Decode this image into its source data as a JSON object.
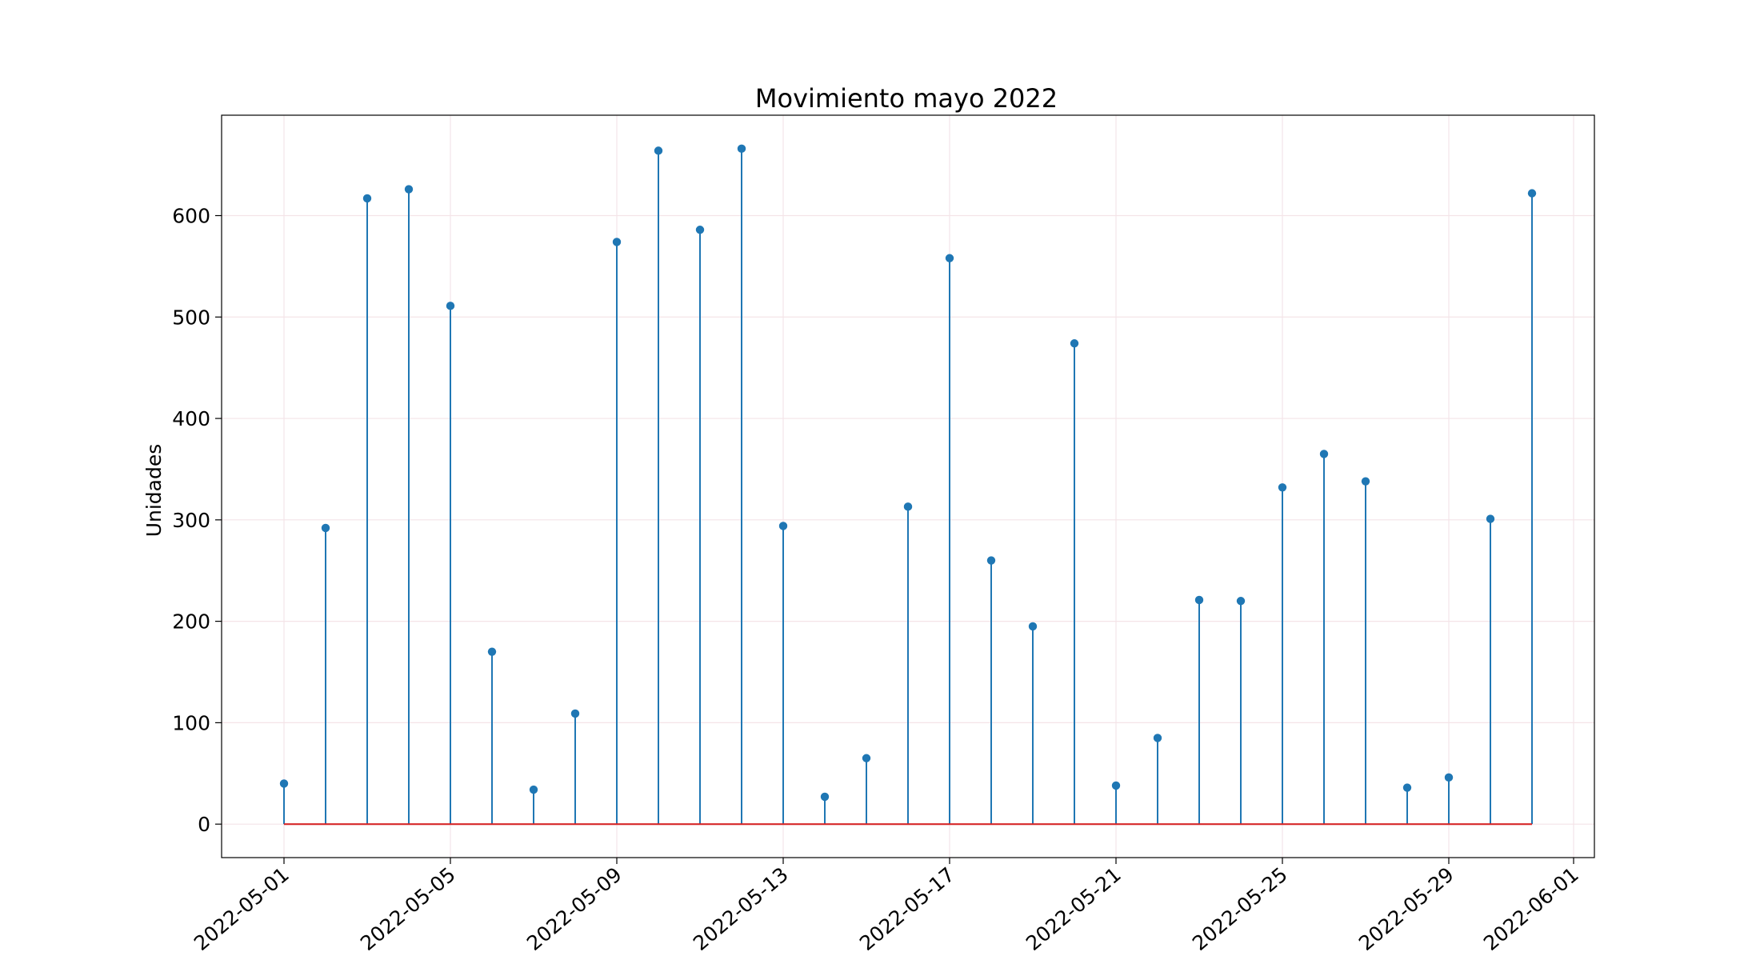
{
  "chart_data": {
    "type": "stem",
    "title": "Movimiento mayo 2022",
    "xlabel": "",
    "ylabel": "Unidades",
    "x": [
      "2022-05-01",
      "2022-05-02",
      "2022-05-03",
      "2022-05-04",
      "2022-05-05",
      "2022-05-06",
      "2022-05-07",
      "2022-05-08",
      "2022-05-09",
      "2022-05-10",
      "2022-05-11",
      "2022-05-12",
      "2022-05-13",
      "2022-05-14",
      "2022-05-15",
      "2022-05-16",
      "2022-05-17",
      "2022-05-18",
      "2022-05-19",
      "2022-05-20",
      "2022-05-21",
      "2022-05-22",
      "2022-05-23",
      "2022-05-24",
      "2022-05-25",
      "2022-05-26",
      "2022-05-27",
      "2022-05-28",
      "2022-05-29",
      "2022-05-30",
      "2022-05-31"
    ],
    "values": [
      40,
      292,
      617,
      626,
      511,
      170,
      34,
      109,
      574,
      664,
      586,
      666,
      294,
      27,
      65,
      313,
      558,
      260,
      195,
      474,
      38,
      85,
      221,
      220,
      332,
      365,
      338,
      36,
      46,
      301,
      622
    ],
    "xticks": [
      "2022-05-01",
      "2022-05-05",
      "2022-05-09",
      "2022-05-13",
      "2022-05-17",
      "2022-05-21",
      "2022-05-25",
      "2022-05-29",
      "2022-06-01"
    ],
    "yticks": [
      0,
      100,
      200,
      300,
      400,
      500,
      600
    ],
    "ylim": [
      -33,
      699
    ],
    "xlim": [
      "2022-04-29T12:00",
      "2022-06-01T12:00"
    ],
    "grid": true,
    "colors": {
      "stem": "#1f77b4",
      "baseline": "#d62728",
      "grid": "#f4e4e8"
    }
  }
}
